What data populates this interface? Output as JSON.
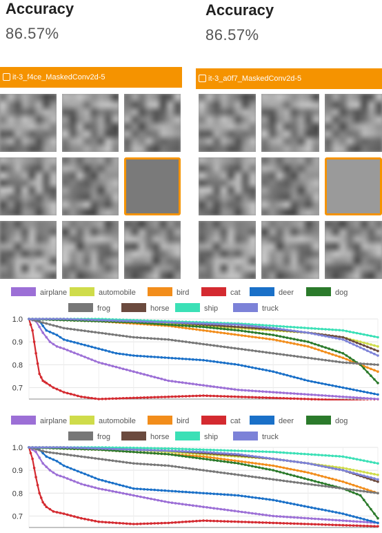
{
  "panels": [
    {
      "accuracy_title": "Accuracy",
      "accuracy_value": "86.57%",
      "layer_label": "it-3_f4ce_MaskedConv2d-5",
      "selected_index": 5,
      "selected_fill": "#7a7a7a"
    },
    {
      "accuracy_title": "Accuracy",
      "accuracy_value": "86.57%",
      "layer_label": "it-3_a0f7_MaskedConv2d-5",
      "selected_index": 5,
      "selected_fill": "#9a9a9a"
    }
  ],
  "colors": {
    "accent": "#f59300"
  },
  "icons": [
    "layer-icon"
  ],
  "legend": [
    {
      "name": "airplane",
      "color": "#9c6fd6"
    },
    {
      "name": "automobile",
      "color": "#cfdc4a"
    },
    {
      "name": "bird",
      "color": "#f28d1b"
    },
    {
      "name": "cat",
      "color": "#d42a30"
    },
    {
      "name": "deer",
      "color": "#1a70c8"
    },
    {
      "name": "dog",
      "color": "#2b7a2b"
    },
    {
      "name": "frog",
      "color": "#777777"
    },
    {
      "name": "horse",
      "color": "#6b4a3e"
    },
    {
      "name": "ship",
      "color": "#3be0b6"
    },
    {
      "name": "truck",
      "color": "#7c82d8"
    }
  ],
  "chart_data": [
    {
      "type": "line",
      "ylim": [
        0.65,
        1.0
      ],
      "yticks": [
        "1.0",
        "0.9",
        "0.8",
        "0.7"
      ],
      "xlim": [
        0,
        100
      ],
      "series": [
        {
          "name": "airplane",
          "x": [
            0,
            2,
            4,
            6,
            8,
            10,
            15,
            20,
            30,
            40,
            50,
            60,
            70,
            80,
            90,
            100
          ],
          "y": [
            1.0,
            0.99,
            0.94,
            0.9,
            0.88,
            0.87,
            0.84,
            0.81,
            0.77,
            0.73,
            0.71,
            0.69,
            0.68,
            0.67,
            0.66,
            0.65
          ]
        },
        {
          "name": "automobile",
          "x": [
            0,
            10,
            20,
            30,
            40,
            50,
            60,
            70,
            80,
            90,
            100
          ],
          "y": [
            1.0,
            1.0,
            0.995,
            0.99,
            0.98,
            0.97,
            0.96,
            0.95,
            0.94,
            0.92,
            0.88
          ]
        },
        {
          "name": "bird",
          "x": [
            0,
            10,
            20,
            30,
            40,
            50,
            60,
            70,
            80,
            90,
            100
          ],
          "y": [
            1.0,
            0.995,
            0.99,
            0.98,
            0.97,
            0.95,
            0.93,
            0.91,
            0.88,
            0.83,
            0.77
          ]
        },
        {
          "name": "cat",
          "x": [
            0,
            1,
            2,
            3,
            4,
            5,
            7,
            10,
            15,
            20,
            30,
            40,
            50,
            60,
            70,
            80,
            90,
            100
          ],
          "y": [
            1.0,
            0.95,
            0.85,
            0.76,
            0.73,
            0.72,
            0.7,
            0.68,
            0.66,
            0.65,
            0.655,
            0.66,
            0.665,
            0.66,
            0.655,
            0.65,
            0.645,
            0.64
          ]
        },
        {
          "name": "deer",
          "x": [
            0,
            3,
            5,
            8,
            10,
            15,
            20,
            25,
            30,
            40,
            50,
            60,
            70,
            80,
            90,
            100
          ],
          "y": [
            1.0,
            0.99,
            0.95,
            0.93,
            0.91,
            0.89,
            0.87,
            0.85,
            0.84,
            0.83,
            0.82,
            0.8,
            0.77,
            0.73,
            0.7,
            0.67
          ]
        },
        {
          "name": "dog",
          "x": [
            0,
            10,
            20,
            30,
            40,
            50,
            60,
            70,
            80,
            90,
            95,
            100
          ],
          "y": [
            1.0,
            0.995,
            0.99,
            0.985,
            0.975,
            0.965,
            0.95,
            0.93,
            0.9,
            0.85,
            0.8,
            0.72
          ]
        },
        {
          "name": "frog",
          "x": [
            0,
            5,
            10,
            20,
            30,
            40,
            50,
            60,
            70,
            80,
            90,
            100
          ],
          "y": [
            1.0,
            0.98,
            0.96,
            0.94,
            0.92,
            0.91,
            0.89,
            0.87,
            0.85,
            0.83,
            0.81,
            0.8
          ]
        },
        {
          "name": "horse",
          "x": [
            0,
            10,
            20,
            30,
            40,
            50,
            60,
            70,
            80,
            90,
            100
          ],
          "y": [
            1.0,
            1.0,
            0.995,
            0.99,
            0.985,
            0.975,
            0.965,
            0.955,
            0.94,
            0.92,
            0.86
          ]
        },
        {
          "name": "ship",
          "x": [
            0,
            10,
            20,
            30,
            40,
            50,
            60,
            70,
            80,
            90,
            100
          ],
          "y": [
            1.0,
            1.0,
            1.0,
            0.995,
            0.99,
            0.985,
            0.98,
            0.97,
            0.96,
            0.95,
            0.92
          ]
        },
        {
          "name": "truck",
          "x": [
            0,
            10,
            20,
            30,
            40,
            50,
            60,
            70,
            80,
            90,
            100
          ],
          "y": [
            1.0,
            1.0,
            0.995,
            0.99,
            0.985,
            0.98,
            0.975,
            0.96,
            0.94,
            0.91,
            0.84
          ]
        }
      ]
    },
    {
      "type": "line",
      "ylim": [
        0.65,
        1.0
      ],
      "yticks": [
        "1.0",
        "0.9",
        "0.8",
        "0.7"
      ],
      "xlim": [
        0,
        100
      ],
      "series": [
        {
          "name": "airplane",
          "x": [
            0,
            2,
            4,
            6,
            8,
            10,
            15,
            20,
            30,
            40,
            50,
            60,
            70,
            80,
            90,
            100
          ],
          "y": [
            1.0,
            0.98,
            0.93,
            0.9,
            0.88,
            0.87,
            0.84,
            0.82,
            0.79,
            0.76,
            0.74,
            0.72,
            0.7,
            0.69,
            0.68,
            0.67
          ]
        },
        {
          "name": "automobile",
          "x": [
            0,
            10,
            20,
            30,
            40,
            50,
            60,
            70,
            80,
            90,
            100
          ],
          "y": [
            1.0,
            1.0,
            0.995,
            0.99,
            0.98,
            0.97,
            0.96,
            0.95,
            0.93,
            0.91,
            0.88
          ]
        },
        {
          "name": "bird",
          "x": [
            0,
            10,
            20,
            30,
            40,
            50,
            60,
            70,
            80,
            90,
            100
          ],
          "y": [
            1.0,
            0.995,
            0.99,
            0.98,
            0.97,
            0.96,
            0.94,
            0.92,
            0.89,
            0.85,
            0.8
          ]
        },
        {
          "name": "cat",
          "x": [
            0,
            1,
            2,
            3,
            4,
            5,
            7,
            10,
            15,
            20,
            30,
            40,
            50,
            60,
            70,
            80,
            90,
            100
          ],
          "y": [
            1.0,
            0.95,
            0.87,
            0.8,
            0.76,
            0.74,
            0.72,
            0.71,
            0.69,
            0.675,
            0.665,
            0.67,
            0.68,
            0.675,
            0.67,
            0.665,
            0.66,
            0.655
          ]
        },
        {
          "name": "deer",
          "x": [
            0,
            3,
            5,
            8,
            10,
            15,
            20,
            25,
            30,
            40,
            50,
            60,
            70,
            80,
            90,
            100
          ],
          "y": [
            1.0,
            0.99,
            0.96,
            0.94,
            0.92,
            0.89,
            0.86,
            0.84,
            0.82,
            0.81,
            0.8,
            0.79,
            0.77,
            0.74,
            0.71,
            0.67
          ]
        },
        {
          "name": "dog",
          "x": [
            0,
            10,
            20,
            30,
            40,
            50,
            60,
            70,
            80,
            90,
            95,
            100
          ],
          "y": [
            1.0,
            0.995,
            0.99,
            0.98,
            0.97,
            0.95,
            0.93,
            0.9,
            0.86,
            0.82,
            0.79,
            0.69
          ]
        },
        {
          "name": "frog",
          "x": [
            0,
            5,
            10,
            20,
            30,
            40,
            50,
            60,
            70,
            80,
            90,
            100
          ],
          "y": [
            1.0,
            0.98,
            0.97,
            0.95,
            0.93,
            0.92,
            0.9,
            0.88,
            0.86,
            0.84,
            0.82,
            0.8
          ]
        },
        {
          "name": "horse",
          "x": [
            0,
            10,
            20,
            30,
            40,
            50,
            60,
            70,
            80,
            90,
            100
          ],
          "y": [
            1.0,
            1.0,
            0.995,
            0.99,
            0.985,
            0.975,
            0.965,
            0.95,
            0.93,
            0.9,
            0.85
          ]
        },
        {
          "name": "ship",
          "x": [
            0,
            10,
            20,
            30,
            40,
            50,
            60,
            70,
            80,
            90,
            100
          ],
          "y": [
            1.0,
            1.0,
            1.0,
            0.998,
            0.995,
            0.99,
            0.985,
            0.98,
            0.97,
            0.96,
            0.93
          ]
        },
        {
          "name": "truck",
          "x": [
            0,
            10,
            20,
            30,
            40,
            50,
            60,
            70,
            80,
            90,
            100
          ],
          "y": [
            1.0,
            1.0,
            0.995,
            0.99,
            0.985,
            0.98,
            0.97,
            0.95,
            0.93,
            0.9,
            0.86
          ]
        }
      ]
    }
  ]
}
